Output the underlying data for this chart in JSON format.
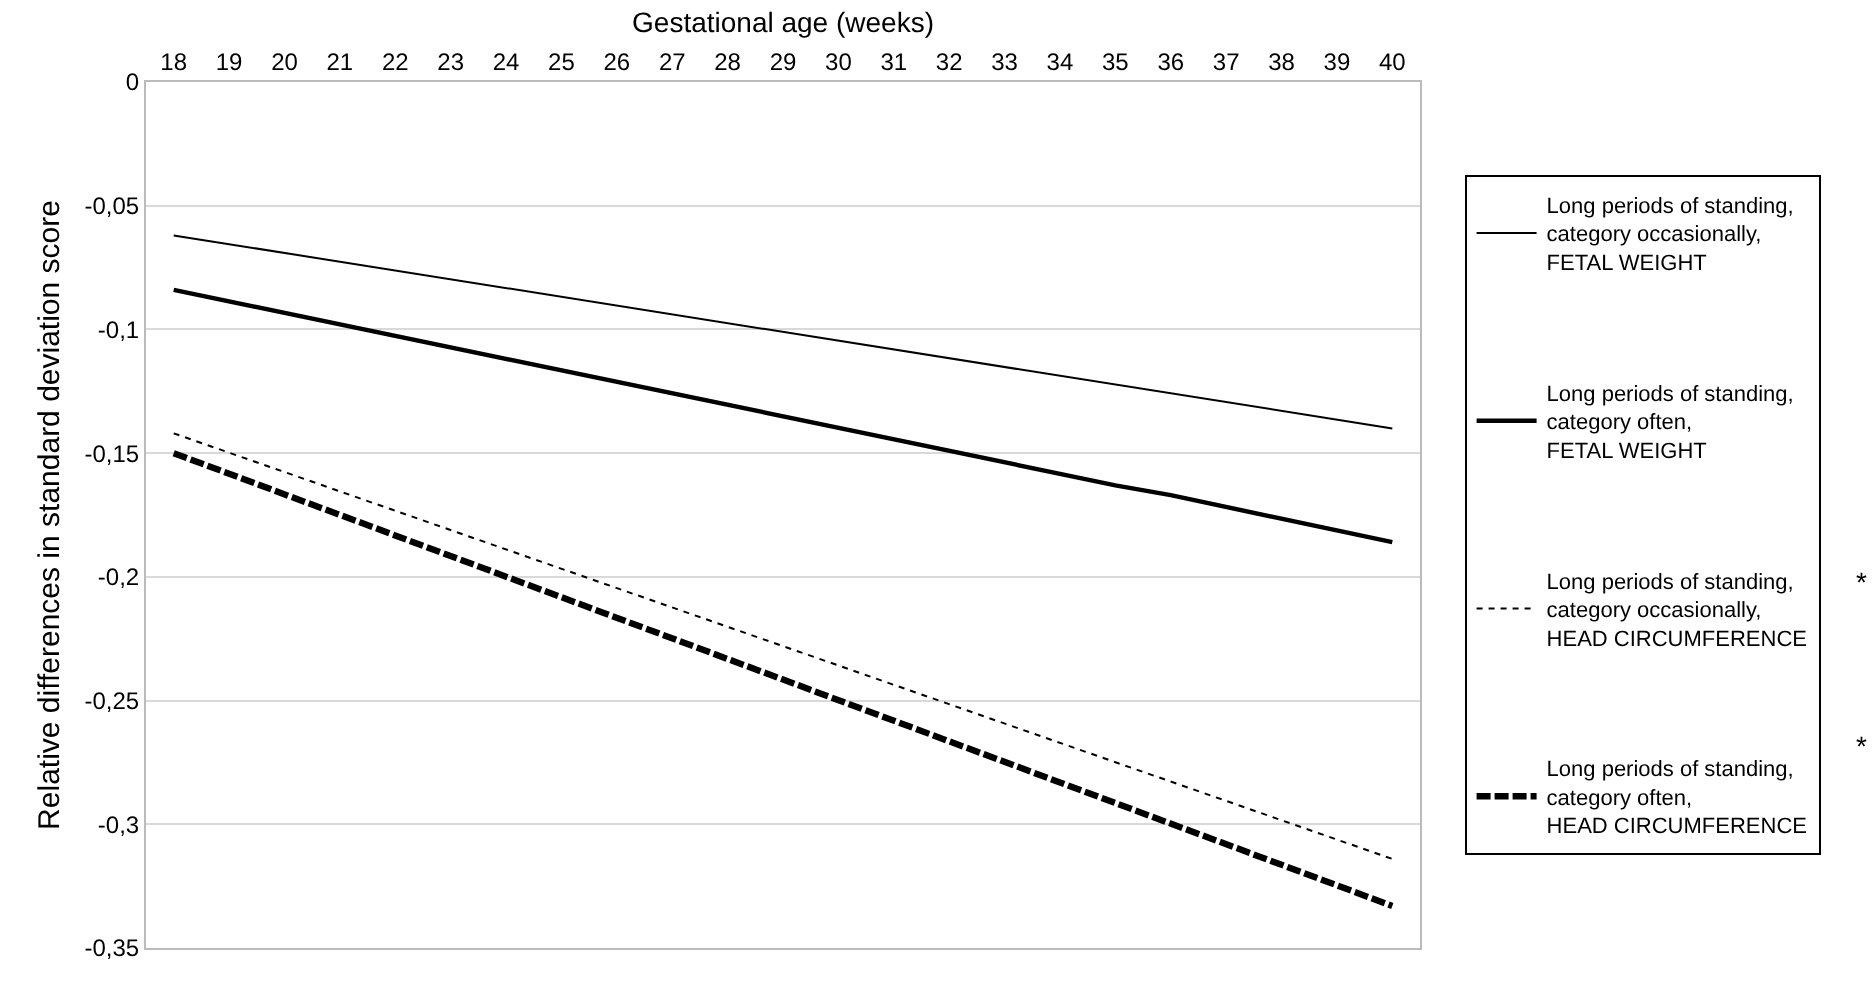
{
  "chart_data": {
    "type": "line",
    "xlabel": "Gestational age (weeks)",
    "ylabel": "Relative differences in standard deviation score",
    "xlim": [
      17.5,
      40.5
    ],
    "xticks": [
      18,
      19,
      20,
      21,
      22,
      23,
      24,
      25,
      26,
      27,
      28,
      29,
      30,
      31,
      32,
      33,
      34,
      35,
      36,
      37,
      38,
      39,
      40
    ],
    "ylim": [
      -0.35,
      0
    ],
    "yticks": [
      0,
      {
        "value": -0.05,
        "label": "-0,05"
      },
      {
        "value": -0.1,
        "label": "-0,1"
      },
      {
        "value": -0.15,
        "label": "-0,15"
      },
      {
        "value": -0.2,
        "label": "-0,2"
      },
      {
        "value": -0.25,
        "label": "-0,25"
      },
      {
        "value": -0.3,
        "label": "-0,3"
      },
      {
        "value": -0.35,
        "label": "-0,35"
      }
    ],
    "grid": "y",
    "legend": "right",
    "marker": "none",
    "series": [
      {
        "name": "Long periods of standing,\ncategory occasionally,\nFETAL WEIGHT",
        "color": "#000000",
        "line_style": "solid",
        "x": [
          18,
          40
        ],
        "values": [
          -0.062,
          -0.14
        ]
      },
      {
        "name": "Long periods of standing,\ncategory often,\nFETAL WEIGHT",
        "color": "#000000",
        "line_style": "solid",
        "x": [
          18,
          35,
          36,
          40
        ],
        "values": [
          -0.084,
          -0.163,
          -0.167,
          -0.186
        ]
      },
      {
        "name": "Long periods of standing,\ncategory occasionally,\nHEAD CIRCUMFERENCE",
        "color": "#000000",
        "line_style": "dotted",
        "x": [
          18,
          40
        ],
        "values": [
          -0.142,
          -0.314
        ]
      },
      {
        "name": "Long periods of standing,\ncategory often,\nHEAD CIRCUMFERENCE",
        "color": "#000000",
        "line_style": "dashed",
        "x": [
          18,
          40
        ],
        "values": [
          -0.15,
          -0.333
        ]
      }
    ],
    "annotations": [
      "*",
      "*"
    ]
  }
}
